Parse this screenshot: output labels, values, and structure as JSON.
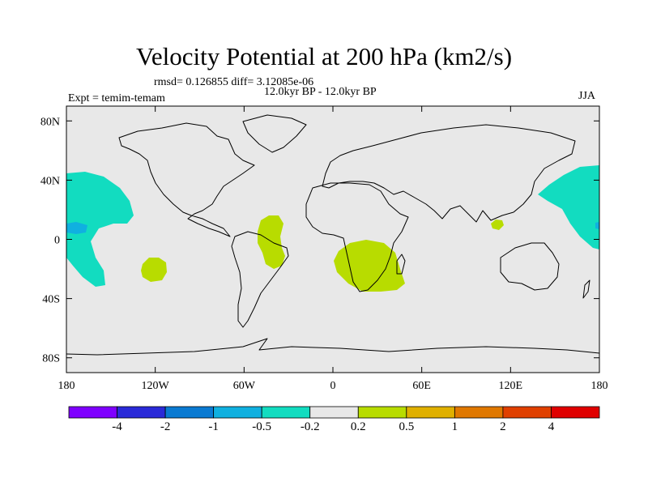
{
  "figure": {
    "title": "Velocity Potential at 200 hPa (km2/s)",
    "stats": "rmsd= 0.126855  diff= 3.12085e-06",
    "period": "12.0kyr BP - 12.0kyr BP",
    "experiment": "Expt = temim-temam",
    "season": "JJA"
  },
  "axes": {
    "lat_labels": [
      "80N",
      "40N",
      "0",
      "40S",
      "80S"
    ],
    "lat_values": [
      80,
      40,
      0,
      -40,
      -80
    ],
    "lon_labels": [
      "180",
      "120W",
      "60W",
      "0",
      "60E",
      "120E",
      "180"
    ],
    "lon_values": [
      -180,
      -120,
      -60,
      0,
      60,
      120,
      180
    ]
  },
  "colorbar": {
    "colors": [
      "#7f00ff",
      "#2a2ad8",
      "#0a7ad2",
      "#10b0e0",
      "#12dcc0",
      "#e8e8e8",
      "#b8dc00",
      "#e0b000",
      "#e07800",
      "#e04000",
      "#e00000"
    ],
    "labels": [
      "-4",
      "-2",
      "-1",
      "-0.5",
      "-0.2",
      "0.2",
      "0.5",
      "1",
      "2",
      "4"
    ]
  },
  "map_style": {
    "background": "#e8e8e8",
    "coastline": "#000000",
    "negative_fill": "#12dcc0",
    "negative_core": "#10b0e0",
    "positive_fill": "#b8dc00"
  }
}
